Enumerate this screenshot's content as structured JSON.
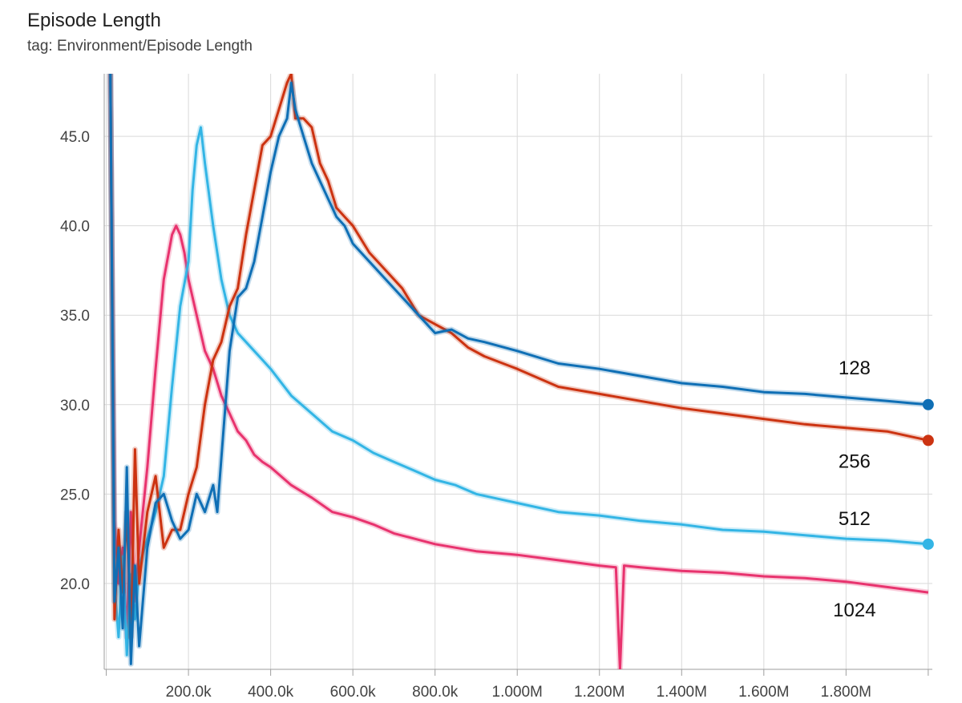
{
  "header": {
    "title": "Episode Length",
    "subtitle": "tag: Environment/Episode Length"
  },
  "chart_data": {
    "type": "line",
    "title": "Episode Length",
    "subtitle": "tag: Environment/Episode Length",
    "xlabel": "",
    "ylabel": "",
    "xlim": [
      -5000,
      2010000
    ],
    "ylim": [
      15.2,
      48.5
    ],
    "grid": true,
    "y_ticks": [
      {
        "value": 20.0,
        "label": "20.0"
      },
      {
        "value": 25.0,
        "label": "25.0"
      },
      {
        "value": 30.0,
        "label": "30.0"
      },
      {
        "value": 35.0,
        "label": "35.0"
      },
      {
        "value": 40.0,
        "label": "40.0"
      },
      {
        "value": 45.0,
        "label": "45.0"
      }
    ],
    "x_ticks": [
      {
        "value": 0,
        "label": ""
      },
      {
        "value": 200000,
        "label": "200.0k"
      },
      {
        "value": 400000,
        "label": "400.0k"
      },
      {
        "value": 600000,
        "label": "600.0k"
      },
      {
        "value": 800000,
        "label": "800.0k"
      },
      {
        "value": 1000000,
        "label": "1.000M"
      },
      {
        "value": 1200000,
        "label": "1.200M"
      },
      {
        "value": 1400000,
        "label": "1.400M"
      },
      {
        "value": 1600000,
        "label": "1.600M"
      },
      {
        "value": 1800000,
        "label": "1.800M"
      },
      {
        "value": 2000000,
        "label": ""
      }
    ],
    "series": [
      {
        "name": "128",
        "color": "#0F6FB5",
        "end_marker": true,
        "x": [
          10000,
          20000,
          30000,
          40000,
          50000,
          60000,
          70000,
          80000,
          100000,
          120000,
          140000,
          160000,
          180000,
          200000,
          220000,
          240000,
          260000,
          270000,
          280000,
          300000,
          320000,
          340000,
          360000,
          380000,
          400000,
          420000,
          440000,
          450000,
          460000,
          480000,
          500000,
          520000,
          540000,
          560000,
          580000,
          600000,
          640000,
          680000,
          720000,
          760000,
          800000,
          840000,
          880000,
          920000,
          1000000,
          1100000,
          1200000,
          1300000,
          1400000,
          1500000,
          1600000,
          1700000,
          1800000,
          1900000,
          2000000
        ],
        "y": [
          48.5,
          19.0,
          22.0,
          17.5,
          26.5,
          15.5,
          21.0,
          16.5,
          22.0,
          24.5,
          25.0,
          23.5,
          22.5,
          23.0,
          25.0,
          24.0,
          25.5,
          24.0,
          27.0,
          33.0,
          36.0,
          36.5,
          38.0,
          40.5,
          43.0,
          45.0,
          46.0,
          48.0,
          46.5,
          45.0,
          43.5,
          42.5,
          41.5,
          40.5,
          40.0,
          39.0,
          38.0,
          37.0,
          36.0,
          35.0,
          34.0,
          34.2,
          33.7,
          33.5,
          33.0,
          32.3,
          32.0,
          31.6,
          31.2,
          31.0,
          30.7,
          30.6,
          30.4,
          30.2,
          30.0
        ]
      },
      {
        "name": "256",
        "color": "#CC3311",
        "end_marker": true,
        "x": [
          10000,
          20000,
          30000,
          40000,
          50000,
          60000,
          70000,
          80000,
          100000,
          120000,
          140000,
          160000,
          180000,
          200000,
          220000,
          240000,
          260000,
          280000,
          300000,
          320000,
          340000,
          360000,
          380000,
          400000,
          420000,
          440000,
          450000,
          460000,
          480000,
          500000,
          520000,
          540000,
          560000,
          580000,
          600000,
          640000,
          680000,
          720000,
          760000,
          800000,
          840000,
          880000,
          920000,
          1000000,
          1100000,
          1200000,
          1300000,
          1400000,
          1500000,
          1600000,
          1700000,
          1800000,
          1900000,
          2000000
        ],
        "y": [
          48.5,
          18.0,
          23.0,
          19.5,
          24.0,
          17.0,
          27.5,
          20.0,
          24.0,
          26.0,
          22.0,
          23.0,
          23.0,
          25.0,
          26.5,
          30.0,
          32.5,
          33.5,
          35.5,
          36.5,
          39.5,
          42.0,
          44.5,
          45.0,
          46.5,
          48.0,
          48.5,
          46.0,
          46.0,
          45.5,
          43.5,
          42.5,
          41.0,
          40.5,
          40.0,
          38.5,
          37.5,
          36.5,
          35.0,
          34.5,
          34.0,
          33.2,
          32.7,
          32.0,
          31.0,
          30.6,
          30.2,
          29.8,
          29.5,
          29.2,
          28.9,
          28.7,
          28.5,
          28.0
        ]
      },
      {
        "name": "512",
        "color": "#33B5E5",
        "end_marker": true,
        "x": [
          10000,
          20000,
          30000,
          40000,
          50000,
          60000,
          70000,
          80000,
          100000,
          120000,
          140000,
          160000,
          180000,
          200000,
          210000,
          220000,
          230000,
          240000,
          260000,
          280000,
          300000,
          320000,
          340000,
          360000,
          380000,
          400000,
          450000,
          500000,
          550000,
          600000,
          650000,
          700000,
          750000,
          800000,
          850000,
          900000,
          1000000,
          1100000,
          1200000,
          1300000,
          1400000,
          1500000,
          1600000,
          1700000,
          1800000,
          1900000,
          2000000
        ],
        "y": [
          48.5,
          20.0,
          17.0,
          21.5,
          16.0,
          20.5,
          18.0,
          21.0,
          22.5,
          24.0,
          26.0,
          31.0,
          35.5,
          38.0,
          42.0,
          44.5,
          45.5,
          43.5,
          40.0,
          37.0,
          35.0,
          34.0,
          33.5,
          33.0,
          32.5,
          32.0,
          30.5,
          29.5,
          28.5,
          28.0,
          27.3,
          26.8,
          26.3,
          25.8,
          25.5,
          25.0,
          24.5,
          24.0,
          23.8,
          23.5,
          23.3,
          23.0,
          22.9,
          22.7,
          22.5,
          22.4,
          22.2
        ]
      },
      {
        "name": "1024",
        "color": "#E8336E",
        "end_marker": false,
        "x": [
          10000,
          20000,
          30000,
          40000,
          50000,
          60000,
          70000,
          80000,
          100000,
          120000,
          140000,
          160000,
          170000,
          180000,
          190000,
          200000,
          220000,
          240000,
          260000,
          280000,
          300000,
          320000,
          340000,
          360000,
          380000,
          400000,
          450000,
          500000,
          550000,
          600000,
          650000,
          700000,
          750000,
          800000,
          900000,
          1000000,
          1100000,
          1200000,
          1240000,
          1250000,
          1260000,
          1300000,
          1400000,
          1500000,
          1600000,
          1700000,
          1800000,
          1900000,
          2000000
        ],
        "y": [
          48.5,
          23.5,
          20.0,
          22.0,
          17.0,
          24.0,
          19.0,
          22.0,
          26.5,
          32.0,
          37.0,
          39.5,
          40.0,
          39.5,
          38.5,
          37.0,
          35.0,
          33.0,
          32.0,
          30.5,
          29.5,
          28.5,
          28.0,
          27.2,
          26.8,
          26.5,
          25.5,
          24.8,
          24.0,
          23.7,
          23.3,
          22.8,
          22.5,
          22.2,
          21.8,
          21.6,
          21.3,
          21.0,
          20.9,
          15.2,
          21.0,
          20.9,
          20.7,
          20.6,
          20.4,
          20.3,
          20.1,
          19.8,
          19.5
        ]
      }
    ],
    "series_labels": [
      "128",
      "256",
      "512",
      "1024"
    ]
  }
}
